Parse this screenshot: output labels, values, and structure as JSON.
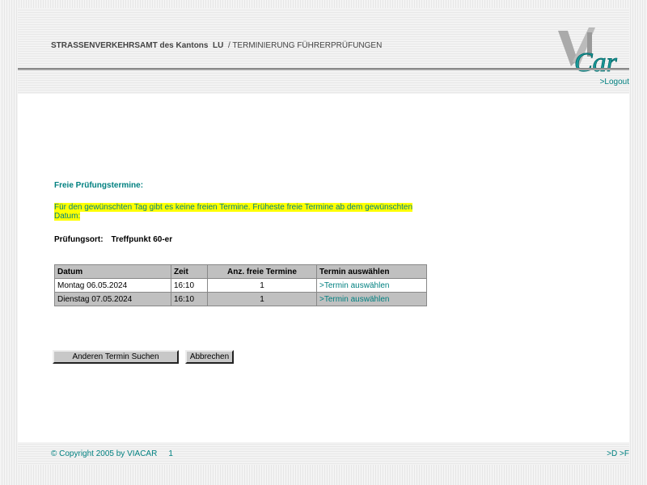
{
  "header": {
    "org": "STRASSENVERKEHRSAMT des Kantons",
    "canton": "LU",
    "section": "/ TERMINIERUNG FÜHRERPRÜFUNGEN",
    "logo_text": "ViA Car",
    "logout": ">Logout"
  },
  "main": {
    "heading": "Freie Prüfungstermine:",
    "notice": "Für den gewünschten Tag gibt es keine freien Termine. Früheste freie Termine ab dem gewünschten Datum:",
    "location_label": "Prüfungsort:",
    "location_value": "Treffpunkt 60-er",
    "table": {
      "columns": [
        "Datum",
        "Zeit",
        "Anz. freie Termine",
        "Termin auswählen"
      ],
      "rows": [
        {
          "date": "Montag 06.05.2024",
          "time": "16:10",
          "count": "1",
          "link": ">Termin auswählen"
        },
        {
          "date": "Dienstag 07.05.2024",
          "time": "16:10",
          "count": "1",
          "link": ">Termin auswählen"
        }
      ]
    },
    "btn_search": "Anderen Termin Suchen",
    "btn_cancel": "Abbrechen"
  },
  "footer": {
    "copyright": "© Copyright 2005 by VIACAR",
    "page": "1",
    "nav": ">D >F"
  },
  "colors": {
    "accent": "#008080",
    "highlight": "#ffff00",
    "table_header": "#c0c0c0"
  }
}
